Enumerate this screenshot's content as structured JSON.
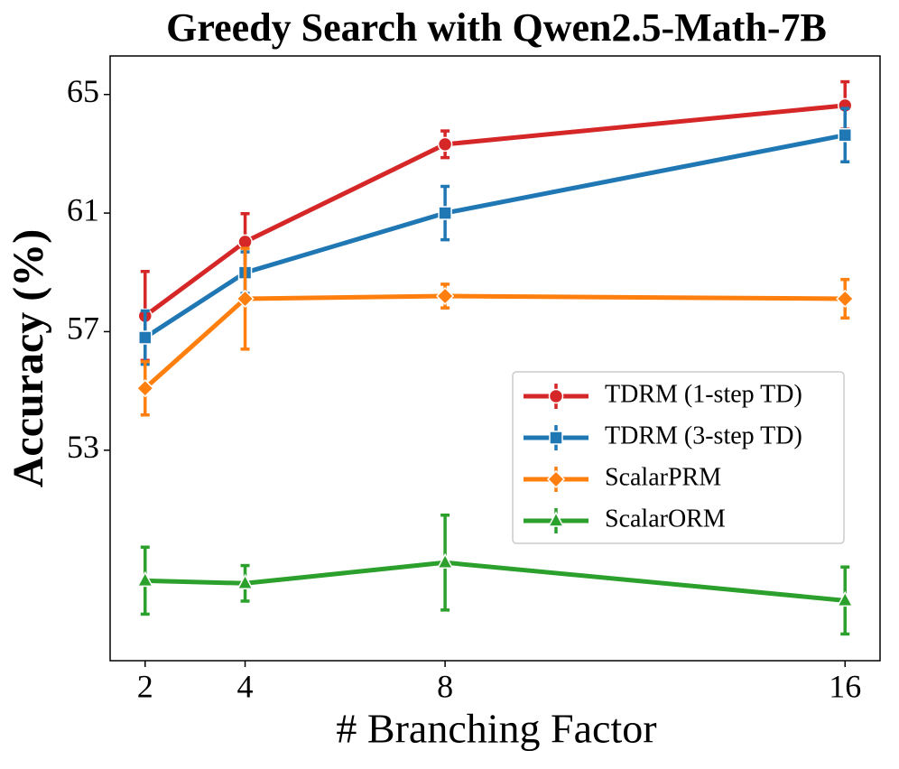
{
  "chart_data": {
    "type": "line",
    "title": "Greedy Search with Qwen2.5-Math-7B",
    "x_label": "# Branching Factor",
    "y_label": "Accuracy (%)",
    "x": [
      2,
      4,
      8,
      16
    ],
    "xlim": [
      1.3,
      16.7
    ],
    "xticks": [
      2,
      4,
      8,
      16
    ],
    "ylim": [
      45.9,
      66.3
    ],
    "yticks": [
      53,
      57,
      61,
      65
    ],
    "grid": false,
    "legend_loc": "center right",
    "series": [
      {
        "name": "TDRM (1-step TD)",
        "color": "#d62728",
        "marker": "circle",
        "values": [
          57.53,
          60.03,
          63.32,
          64.63
        ],
        "errors": [
          1.5,
          0.95,
          0.45,
          0.8
        ]
      },
      {
        "name": "TDRM (3-step TD)",
        "color": "#1f77b4",
        "marker": "square",
        "values": [
          56.8,
          58.99,
          61.0,
          63.63
        ],
        "errors": [
          0.9,
          0.7,
          0.9,
          0.9
        ]
      },
      {
        "name": "ScalarPRM",
        "color": "#ff7f0e",
        "marker": "diamond",
        "values": [
          55.09,
          58.11,
          58.2,
          58.11
        ],
        "errors": [
          0.9,
          1.7,
          0.4,
          0.65
        ]
      },
      {
        "name": "ScalarORM",
        "color": "#2ca02c",
        "marker": "triangle",
        "values": [
          48.6,
          48.51,
          49.21,
          47.93
        ],
        "errors": [
          1.13,
          0.6,
          1.6,
          1.13
        ]
      }
    ]
  }
}
